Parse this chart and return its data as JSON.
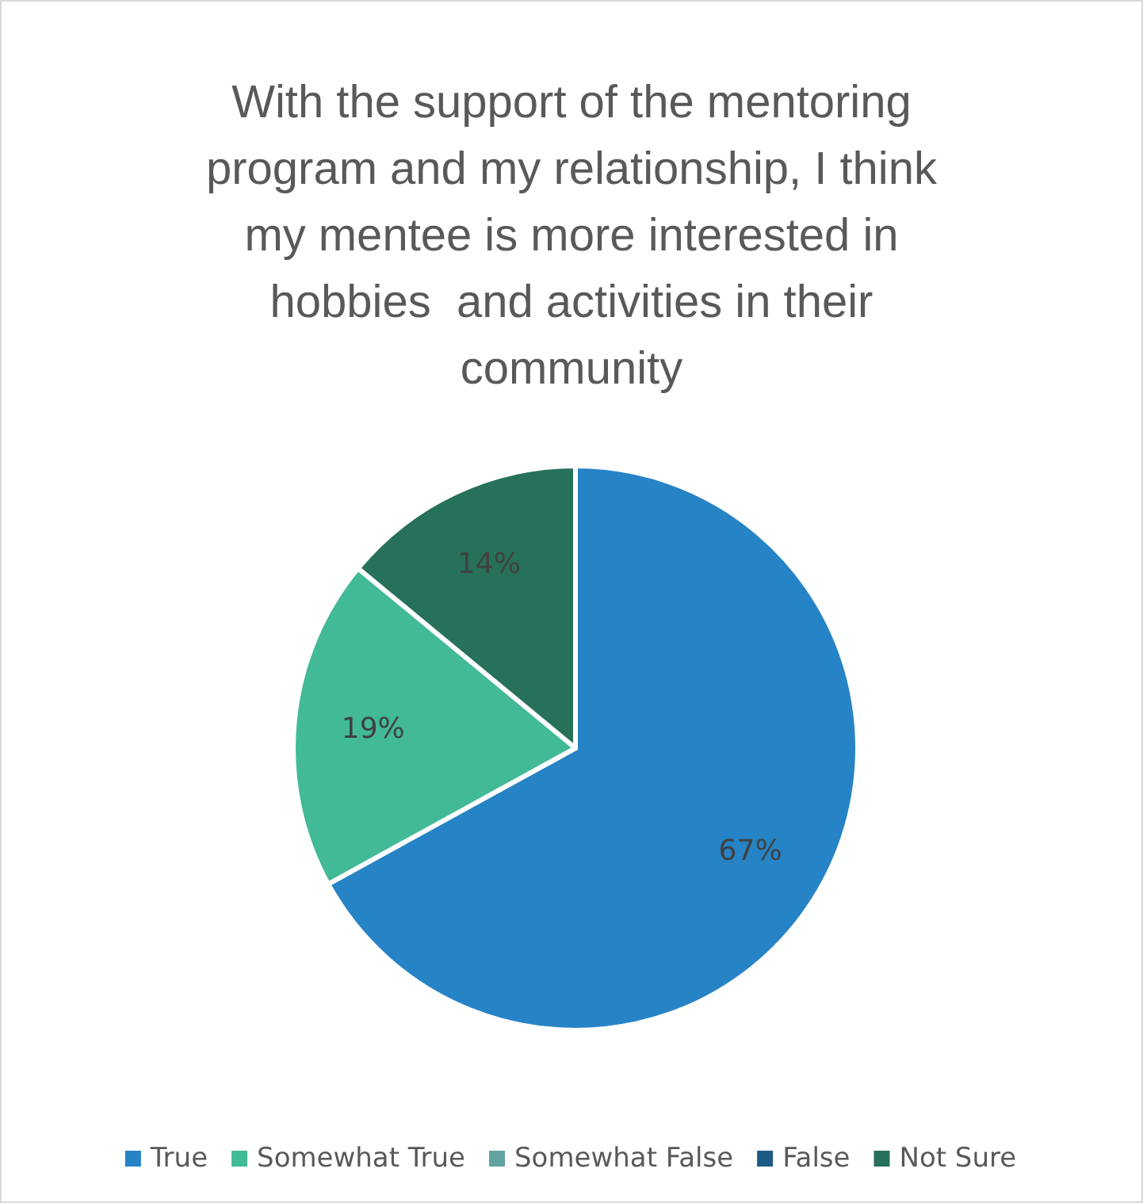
{
  "chart_data": {
    "type": "pie",
    "title": "With the support of the mentoring program and my relationship, I think my mentee is more interested in hobbies  and activities in their community",
    "categories": [
      "True",
      "Somewhat True",
      "Somewhat False",
      "False",
      "Not Sure"
    ],
    "values": [
      67,
      19,
      0,
      0,
      14
    ],
    "colors": [
      "#2683c6",
      "#42ba97",
      "#62a39f",
      "#1c5b86",
      "#27705b"
    ],
    "value_labels": [
      "67%",
      "19%",
      null,
      null,
      "14%"
    ],
    "legend": "bottom"
  }
}
